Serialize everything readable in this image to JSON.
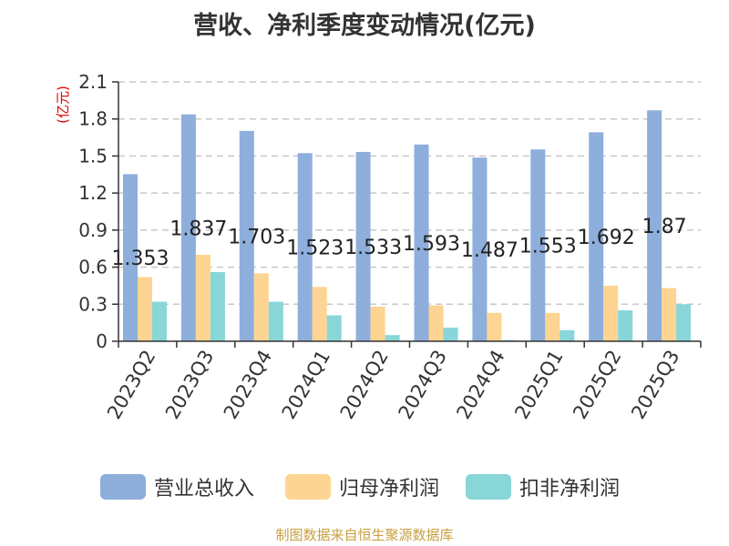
{
  "chart_data": {
    "type": "bar",
    "title": "营收、净利季度变动情况(亿元)",
    "ylabel": "(亿元)",
    "ylim": [
      0,
      2.1
    ],
    "yticks": [
      "0",
      "0.3",
      "0.6",
      "0.9",
      "1.2",
      "1.5",
      "1.8",
      "2.1"
    ],
    "grid": true,
    "legend_position": "bottom",
    "categories": [
      "2023Q2",
      "2023Q3",
      "2023Q4",
      "2024Q1",
      "2024Q2",
      "2024Q3",
      "2024Q4",
      "2025Q1",
      "2025Q2",
      "2025Q3"
    ],
    "series": [
      {
        "name": "营业总收入",
        "color": "#8eaedc",
        "values": [
          1.353,
          1.837,
          1.703,
          1.523,
          1.533,
          1.593,
          1.487,
          1.553,
          1.692,
          1.87
        ],
        "labels": [
          "1.353",
          "1.837",
          "1.703",
          "1.523",
          "1.533",
          "1.593",
          "1.487",
          "1.553",
          "1.692",
          "1.87"
        ]
      },
      {
        "name": "归母净利润",
        "color": "#fdd491",
        "values": [
          0.52,
          0.7,
          0.55,
          0.44,
          0.28,
          0.29,
          0.23,
          0.23,
          0.45,
          0.43
        ]
      },
      {
        "name": "扣非净利润",
        "color": "#88d6d8",
        "values": [
          0.32,
          0.56,
          0.32,
          0.21,
          0.05,
          0.11,
          0.01,
          0.09,
          0.25,
          0.3
        ]
      }
    ]
  },
  "source": "制图数据来自恒生聚源数据库"
}
